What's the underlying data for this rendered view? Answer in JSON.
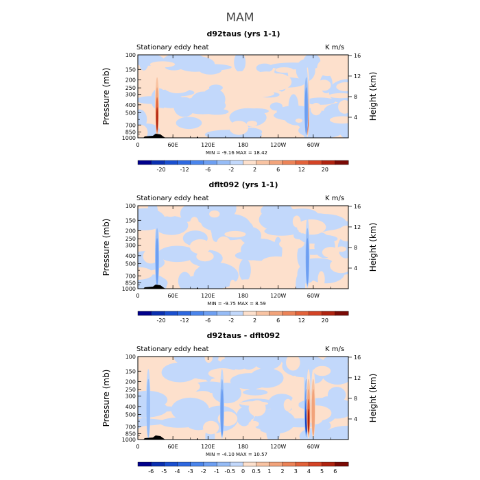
{
  "figure": {
    "title": "MAM"
  },
  "chart_data": [
    {
      "type": "heatmap",
      "title": "d92taus (yrs 1-1)",
      "subtitle_left": "Stationary eddy heat",
      "subtitle_right": "K m/s",
      "ylabel": "Pressure (mb)",
      "ylabel_right": "Height (km)",
      "pressure_ticks": [
        "100",
        "150",
        "200",
        "250",
        "300",
        "400",
        "500",
        "700",
        "850",
        "1000"
      ],
      "height_ticks": [
        "16",
        "12",
        "8",
        "4"
      ],
      "lon_ticks": [
        "0",
        "60E",
        "120E",
        "180",
        "120W",
        "60W"
      ],
      "min_max": "MIN =   -9.16   MAX =   18.42",
      "colorbar_labels": [
        "-20",
        "-12",
        "-6",
        "-2",
        "2",
        "6",
        "12",
        "20"
      ],
      "colorbar_colors": [
        "#00008b",
        "#0a2fb0",
        "#1a4fcf",
        "#2e68e0",
        "#4a85ec",
        "#6d9ff2",
        "#96bcf6",
        "#c2d8fb",
        "#fde0cc",
        "#f8c3a2",
        "#f2a37a",
        "#ec8357",
        "#e2623a",
        "#d44325",
        "#b02310",
        "#7a0a05"
      ],
      "field": [
        {
          "lon": 33,
          "sign": 1,
          "strength": 0.9
        },
        {
          "lon": 290,
          "sign": 1,
          "strength": 1.0
        },
        {
          "lon": 288,
          "sign": -1,
          "strength": 0.5
        }
      ]
    },
    {
      "type": "heatmap",
      "title": "dflt092 (yrs 1-1)",
      "subtitle_left": "Stationary eddy heat",
      "subtitle_right": "K m/s",
      "ylabel": "Pressure (mb)",
      "ylabel_right": "Height (km)",
      "pressure_ticks": [
        "100",
        "150",
        "200",
        "250",
        "300",
        "400",
        "500",
        "700",
        "850",
        "1000"
      ],
      "height_ticks": [
        "16",
        "12",
        "8",
        "4"
      ],
      "lon_ticks": [
        "0",
        "60E",
        "120E",
        "180",
        "120W",
        "60W"
      ],
      "min_max": "MIN =   -9.75   MAX =    8.59",
      "colorbar_labels": [
        "-20",
        "-12",
        "-6",
        "-2",
        "2",
        "6",
        "12",
        "20"
      ],
      "colorbar_colors": [
        "#00008b",
        "#0a2fb0",
        "#1a4fcf",
        "#2e68e0",
        "#4a85ec",
        "#6d9ff2",
        "#96bcf6",
        "#c2d8fb",
        "#fde0cc",
        "#f8c3a2",
        "#f2a37a",
        "#ec8357",
        "#e2623a",
        "#d44325",
        "#b02310",
        "#7a0a05"
      ],
      "field": [
        {
          "lon": 33,
          "sign": -1,
          "strength": 0.5
        },
        {
          "lon": 290,
          "sign": -1,
          "strength": 0.6
        }
      ]
    },
    {
      "type": "heatmap",
      "title": "d92taus - dflt092",
      "subtitle_left": "Stationary eddy heat",
      "subtitle_right": "K m/s",
      "ylabel": "Pressure (mb)",
      "ylabel_right": "Height (km)",
      "pressure_ticks": [
        "100",
        "150",
        "200",
        "250",
        "300",
        "400",
        "500",
        "700",
        "850",
        "1000"
      ],
      "height_ticks": [
        "16",
        "12",
        "8",
        "4"
      ],
      "lon_ticks": [
        "0",
        "60E",
        "120E",
        "180",
        "120W",
        "60W"
      ],
      "min_max": "MIN =   -4.10   MAX =   10.57",
      "colorbar_labels": [
        "-6",
        "-5",
        "-4",
        "-3",
        "-2",
        "-1",
        "-0.5",
        "0",
        "0.5",
        "1",
        "2",
        "3",
        "4",
        "5",
        "6"
      ],
      "colorbar_colors": [
        "#00008b",
        "#0a2fb0",
        "#1a4fcf",
        "#2e68e0",
        "#4a85ec",
        "#6d9ff2",
        "#96bcf6",
        "#c2d8fb",
        "#fde0cc",
        "#f8c3a2",
        "#f2a37a",
        "#ec8357",
        "#e2623a",
        "#d44325",
        "#b02310",
        "#7a0a05"
      ],
      "field": [
        {
          "lon": 288,
          "sign": -1,
          "strength": 1.0
        },
        {
          "lon": 292,
          "sign": 1,
          "strength": 1.0
        },
        {
          "lon": 300,
          "sign": 1,
          "strength": 0.5
        },
        {
          "lon": 144,
          "sign": -1,
          "strength": 0.6
        },
        {
          "lon": 18,
          "sign": -1,
          "strength": 0.4
        }
      ]
    }
  ]
}
